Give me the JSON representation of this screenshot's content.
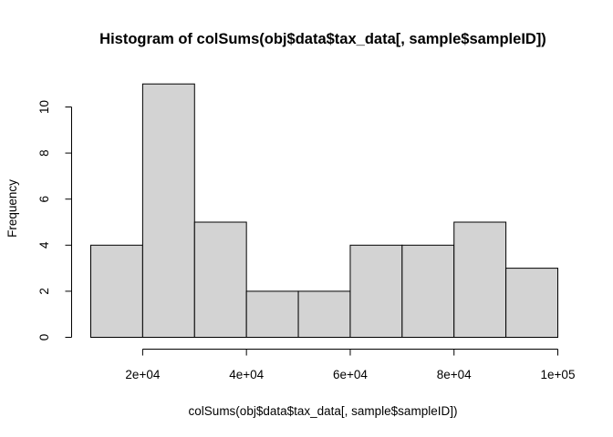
{
  "chart_data": {
    "type": "bar",
    "title": "Histogram of colSums(obj$data$tax_data[, sample$sampleID])",
    "xlabel": "colSums(obj$data$tax_data[, sample$sampleID])",
    "ylabel": "Frequency",
    "bin_edges": [
      10000,
      20000,
      30000,
      40000,
      50000,
      60000,
      70000,
      80000,
      90000,
      100000
    ],
    "values": [
      4,
      11,
      5,
      2,
      2,
      4,
      4,
      5,
      3
    ],
    "xlim": [
      10000,
      100000
    ],
    "ylim": [
      0,
      11
    ],
    "x_ticks": [
      20000,
      40000,
      60000,
      80000,
      100000
    ],
    "x_tick_labels": [
      "2e+04",
      "4e+04",
      "6e+04",
      "8e+04",
      "1e+05"
    ],
    "y_ticks": [
      0,
      2,
      4,
      6,
      8,
      10
    ],
    "y_tick_labels": [
      "0",
      "2",
      "4",
      "6",
      "8",
      "10"
    ],
    "grid": false,
    "colors": {
      "bar_fill": "#d3d3d3",
      "bar_stroke": "#000000"
    }
  }
}
